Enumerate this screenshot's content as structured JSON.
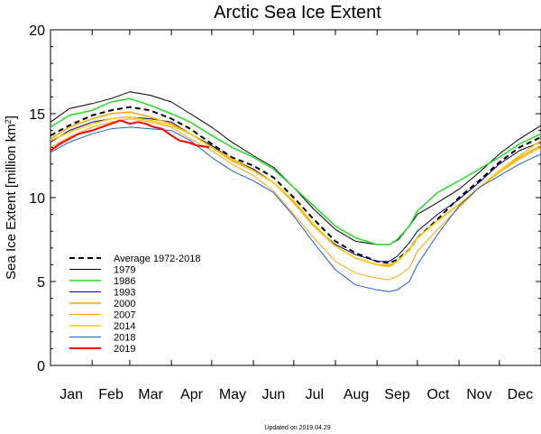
{
  "chart_data": {
    "type": "line",
    "title": "Arctic Sea Ice Extent",
    "ylabel_main": "Sea Ice Extent [million km",
    "ylabel_sup": "2",
    "ylabel_end": "]",
    "xlabel": "",
    "ylim": [
      0,
      20
    ],
    "xlim": [
      1,
      366
    ],
    "y_ticks": [
      0,
      5,
      10,
      15,
      20
    ],
    "months": [
      "Jan",
      "Feb",
      "Mar",
      "Apr",
      "May",
      "Jun",
      "Jul",
      "Aug",
      "Sep",
      "Oct",
      "Nov",
      "Dec"
    ],
    "month_label_days": [
      1,
      32,
      60,
      91,
      121,
      152,
      182,
      213,
      244,
      274,
      305,
      335
    ],
    "legend_position": "lower-left",
    "footer": "Updated on 2019.04.29",
    "series": [
      {
        "name": "Average 1972-2018",
        "color": "#000000",
        "dashed": true,
        "width": 2,
        "x": [
          1,
          15,
          32,
          46,
          60,
          75,
          91,
          105,
          121,
          136,
          152,
          167,
          182,
          197,
          213,
          228,
          244,
          253,
          259,
          268,
          274,
          289,
          305,
          320,
          335,
          350,
          366
        ],
        "y": [
          13.7,
          14.3,
          14.9,
          15.2,
          15.4,
          15.2,
          14.7,
          14.1,
          13.2,
          12.4,
          11.9,
          11.2,
          10.0,
          8.7,
          7.4,
          6.7,
          6.2,
          6.1,
          6.3,
          6.9,
          7.6,
          8.7,
          10.0,
          11.0,
          12.1,
          13.0,
          13.6
        ]
      },
      {
        "name": "1979",
        "color": "#000000",
        "dashed": false,
        "width": 1,
        "x": [
          1,
          15,
          32,
          46,
          60,
          75,
          91,
          105,
          121,
          136,
          152,
          167,
          182,
          197,
          213,
          228,
          244,
          253,
          260,
          268,
          274,
          289,
          305,
          320,
          335,
          350,
          366
        ],
        "y": [
          14.5,
          15.3,
          15.6,
          15.9,
          16.3,
          16.1,
          15.7,
          15.0,
          14.2,
          13.3,
          12.5,
          11.8,
          10.6,
          9.3,
          8.1,
          7.4,
          7.2,
          7.2,
          7.5,
          8.3,
          9.0,
          9.7,
          10.5,
          11.5,
          12.6,
          13.5,
          14.3
        ]
      },
      {
        "name": "1986",
        "color": "#22dd22",
        "dashed": false,
        "width": 1.5,
        "x": [
          1,
          15,
          32,
          46,
          60,
          75,
          91,
          105,
          121,
          136,
          152,
          167,
          182,
          197,
          213,
          228,
          244,
          253,
          259,
          268,
          274,
          289,
          305,
          320,
          335,
          350,
          366
        ],
        "y": [
          14.2,
          14.9,
          15.2,
          15.7,
          15.9,
          15.5,
          15.0,
          14.5,
          13.7,
          13.0,
          12.4,
          11.7,
          10.6,
          9.5,
          8.3,
          7.6,
          7.2,
          7.2,
          7.5,
          8.3,
          9.2,
          10.3,
          11.0,
          11.7,
          12.4,
          13.2,
          13.8
        ]
      },
      {
        "name": "1993",
        "color": "#000080",
        "dashed": false,
        "width": 1,
        "x": [
          1,
          15,
          32,
          46,
          60,
          75,
          91,
          105,
          121,
          136,
          152,
          167,
          182,
          197,
          213,
          228,
          244,
          253,
          259,
          268,
          274,
          289,
          305,
          320,
          335,
          350,
          366
        ],
        "y": [
          13.3,
          14.0,
          14.5,
          14.7,
          14.8,
          14.7,
          14.5,
          13.8,
          13.1,
          12.3,
          11.7,
          10.9,
          9.7,
          8.3,
          7.2,
          6.6,
          6.2,
          6.2,
          6.5,
          7.3,
          8.0,
          9.0,
          9.9,
          10.9,
          12.0,
          12.8,
          13.3
        ]
      },
      {
        "name": "2000",
        "color": "#ffa500",
        "dashed": false,
        "width": 1.5,
        "x": [
          1,
          15,
          32,
          46,
          60,
          75,
          91,
          105,
          121,
          136,
          152,
          167,
          182,
          197,
          213,
          228,
          244,
          253,
          259,
          268,
          274,
          289,
          305,
          320,
          335,
          350,
          366
        ],
        "y": [
          13.5,
          14.2,
          14.7,
          15.0,
          15.1,
          14.8,
          14.4,
          13.8,
          13.0,
          12.2,
          11.6,
          10.9,
          9.7,
          8.3,
          7.1,
          6.4,
          6.0,
          5.9,
          6.2,
          6.9,
          7.6,
          8.6,
          9.6,
          10.6,
          11.6,
          12.4,
          13.1
        ]
      },
      {
        "name": "2007",
        "color": "#ffa500",
        "dashed": false,
        "width": 1,
        "x": [
          1,
          15,
          32,
          46,
          60,
          75,
          91,
          105,
          121,
          136,
          152,
          167,
          182,
          197,
          213,
          228,
          244,
          253,
          259,
          268,
          274,
          289,
          305,
          320,
          335,
          350,
          366
        ],
        "y": [
          13.0,
          13.6,
          14.2,
          14.5,
          14.7,
          14.5,
          14.2,
          13.5,
          12.8,
          12.0,
          11.3,
          10.4,
          9.0,
          7.6,
          6.2,
          5.5,
          5.2,
          5.1,
          5.3,
          5.8,
          6.8,
          8.1,
          9.4,
          10.6,
          11.5,
          12.3,
          13.0
        ]
      },
      {
        "name": "2014",
        "color": "#ffc800",
        "dashed": false,
        "width": 1.5,
        "x": [
          1,
          15,
          32,
          46,
          60,
          75,
          91,
          105,
          121,
          136,
          152,
          167,
          182,
          197,
          213,
          228,
          244,
          253,
          259,
          268,
          274,
          289,
          305,
          320,
          335,
          350,
          366
        ],
        "y": [
          13.4,
          13.9,
          14.4,
          14.7,
          14.8,
          14.6,
          14.3,
          13.8,
          13.0,
          12.3,
          11.6,
          10.9,
          9.8,
          8.4,
          7.1,
          6.4,
          6.0,
          6.0,
          6.2,
          6.9,
          7.6,
          8.6,
          9.6,
          10.6,
          11.6,
          12.5,
          13.4
        ]
      },
      {
        "name": "2018",
        "color": "#1f5fd0",
        "dashed": false,
        "width": 1,
        "x": [
          1,
          15,
          32,
          46,
          60,
          75,
          91,
          105,
          121,
          136,
          152,
          167,
          182,
          197,
          213,
          228,
          244,
          253,
          259,
          268,
          274,
          289,
          305,
          320,
          335,
          350,
          366
        ],
        "y": [
          12.7,
          13.3,
          13.8,
          14.1,
          14.2,
          14.1,
          14.0,
          13.4,
          12.4,
          11.6,
          11.0,
          10.3,
          8.9,
          7.3,
          5.7,
          4.8,
          4.5,
          4.4,
          4.5,
          5.0,
          6.0,
          7.8,
          9.5,
          10.6,
          11.3,
          12.0,
          12.6
        ]
      },
      {
        "name": "2019",
        "color": "#ff0000",
        "dashed": false,
        "width": 2,
        "x": [
          1,
          8,
          15,
          22,
          32,
          39,
          46,
          53,
          60,
          66,
          72,
          78,
          84,
          91,
          97,
          103,
          110,
          119
        ],
        "y": [
          12.8,
          13.2,
          13.5,
          13.8,
          14.0,
          14.2,
          14.4,
          14.6,
          14.4,
          14.5,
          14.4,
          14.2,
          14.1,
          13.7,
          13.4,
          13.3,
          13.1,
          13.0
        ]
      }
    ]
  }
}
